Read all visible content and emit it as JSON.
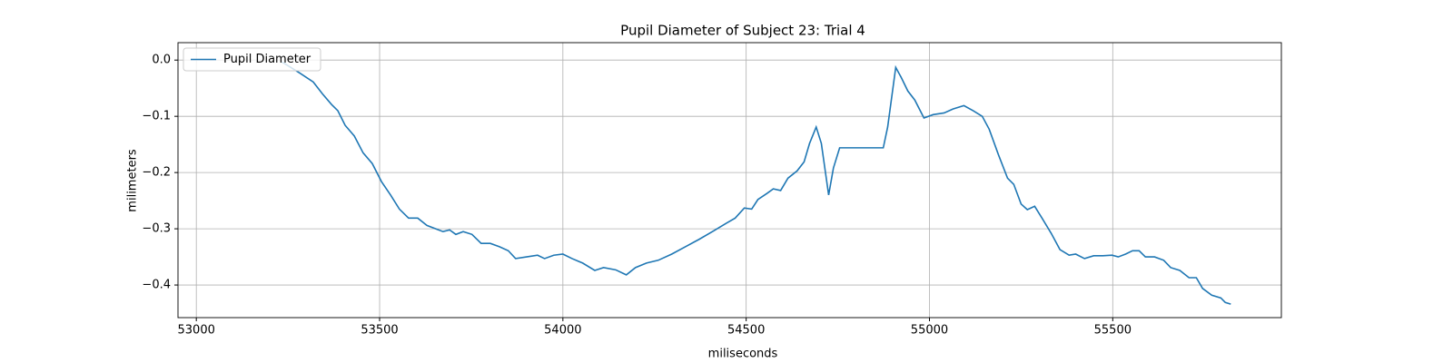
{
  "chart_data": {
    "type": "line",
    "title": "Pupil Diameter of Subject 23: Trial 4",
    "xlabel": "miliseconds",
    "ylabel": "milimeters",
    "xlim": [
      52950,
      55960
    ],
    "ylim": [
      -0.458,
      0.031
    ],
    "xticks": [
      53000,
      53500,
      54000,
      54500,
      55000,
      55500
    ],
    "yticks": [
      {
        "value": 0,
        "label": "0.0"
      },
      {
        "value": -0.1,
        "label": "−0.1"
      },
      {
        "value": -0.2,
        "label": "−0.2"
      },
      {
        "value": -0.3,
        "label": "−0.3"
      },
      {
        "value": -0.4,
        "label": "−0.4"
      }
    ],
    "grid": true,
    "legend": "upper left",
    "x": [
      53233,
      53282,
      53319,
      53344,
      53369,
      53386,
      53406,
      53431,
      53455,
      53480,
      53505,
      53530,
      53554,
      53579,
      53604,
      53629,
      53653,
      53673,
      53691,
      53708,
      53728,
      53752,
      53777,
      53802,
      53827,
      53851,
      53871,
      53901,
      53931,
      53950,
      53975,
      54000,
      54025,
      54054,
      54087,
      54111,
      54144,
      54173,
      54198,
      54228,
      54260,
      54297,
      54334,
      54371,
      54408,
      54446,
      54470,
      54495,
      54515,
      54532,
      54557,
      54574,
      54594,
      54614,
      54639,
      54658,
      54673,
      54691,
      54705,
      54725,
      54738,
      54755,
      54804,
      54874,
      54886,
      54908,
      54923,
      54941,
      54960,
      54985,
      55010,
      55040,
      55064,
      55094,
      55119,
      55144,
      55163,
      55188,
      55213,
      55230,
      55250,
      55267,
      55287,
      55307,
      55332,
      55356,
      55381,
      55399,
      55423,
      55448,
      55473,
      55498,
      55515,
      55535,
      55554,
      55572,
      55589,
      55614,
      55639,
      55658,
      55683,
      55708,
      55728,
      55745,
      55770,
      55795,
      55807,
      55822
    ],
    "series": [
      {
        "name": "Pupil Diameter",
        "color": "#1f77b4",
        "values": [
          -0.003,
          -0.023,
          -0.039,
          -0.06,
          -0.079,
          -0.09,
          -0.116,
          -0.135,
          -0.165,
          -0.184,
          -0.216,
          -0.24,
          -0.265,
          -0.281,
          -0.281,
          -0.294,
          -0.3,
          -0.305,
          -0.302,
          -0.31,
          -0.305,
          -0.31,
          -0.326,
          -0.326,
          -0.332,
          -0.339,
          -0.353,
          -0.35,
          -0.347,
          -0.353,
          -0.347,
          -0.345,
          -0.353,
          -0.361,
          -0.374,
          -0.369,
          -0.373,
          -0.382,
          -0.369,
          -0.361,
          -0.356,
          -0.345,
          -0.332,
          -0.319,
          -0.305,
          -0.29,
          -0.281,
          -0.263,
          -0.265,
          -0.248,
          -0.237,
          -0.229,
          -0.232,
          -0.21,
          -0.197,
          -0.181,
          -0.148,
          -0.119,
          -0.148,
          -0.24,
          -0.192,
          -0.156,
          -0.156,
          -0.156,
          -0.119,
          -0.013,
          -0.031,
          -0.055,
          -0.071,
          -0.103,
          -0.097,
          -0.094,
          -0.087,
          -0.081,
          -0.09,
          -0.1,
          -0.123,
          -0.168,
          -0.21,
          -0.221,
          -0.256,
          -0.266,
          -0.26,
          -0.281,
          -0.308,
          -0.337,
          -0.347,
          -0.345,
          -0.353,
          -0.348,
          -0.348,
          -0.347,
          -0.35,
          -0.345,
          -0.339,
          -0.339,
          -0.35,
          -0.35,
          -0.356,
          -0.369,
          -0.374,
          -0.387,
          -0.387,
          -0.406,
          -0.418,
          -0.423,
          -0.431,
          -0.434
        ]
      }
    ]
  }
}
